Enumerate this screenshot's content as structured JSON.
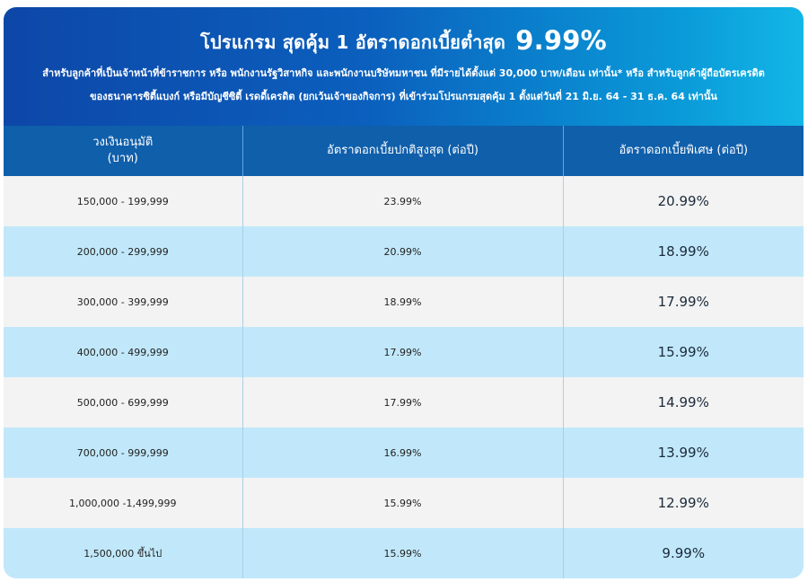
{
  "banner": {
    "title": "โปรแกรม สุดคุ้ม 1 อัตราดอกเบี้ยต่ำสุด",
    "title_rate": "9.99%",
    "line1": "สำหรับลูกค้าที่เป็นเจ้าหน้าที่ข้าราชการ หรือ พนักงานรัฐวิสาหกิจ และพนักงานบริษัทมหาชน ที่มีรายได้ตั้งแต่ 30,000 บาท/เดือน เท่านั้น* หรือ สำหรับลูกค้าผู้ถือบัตรเครดิต",
    "line2": "ของธนาคารซิตี้แบงก์ หรือมีบัญชีซิตี้ เรดดี้เครดิต (ยกเว้นเจ้าของกิจการ) ที่เข้าร่วมโปรแกรมสุดคุ้ม 1 ตั้งแต่วันที่ 21 มิ.ย. 64 - 31 ธ.ค. 64 เท่านั้น"
  },
  "table": {
    "headers": {
      "col1_line1": "วงเงินอนุมัติ",
      "col1_line2": "(บาท)",
      "col2": "อัตราดอกเบี้ยปกติสูงสุด (ต่อปี)",
      "col3": "อัตราดอกเบี้ยพิเศษ (ต่อปี)"
    },
    "rows": [
      {
        "amount": "150,000 - 199,999",
        "normal": "23.99%",
        "special": "20.99%"
      },
      {
        "amount": "200,000 - 299,999",
        "normal": "20.99%",
        "special": "18.99%"
      },
      {
        "amount": "300,000 - 399,999",
        "normal": "18.99%",
        "special": "17.99%"
      },
      {
        "amount": "400,000 - 499,999",
        "normal": "17.99%",
        "special": "15.99%"
      },
      {
        "amount": "500,000 - 699,999",
        "normal": "17.99%",
        "special": "14.99%"
      },
      {
        "amount": "700,000 - 999,999",
        "normal": "16.99%",
        "special": "13.99%"
      },
      {
        "amount": "1,000,000 -1,499,999",
        "normal": "15.99%",
        "special": "12.99%"
      },
      {
        "amount": "1,500,000 ขึ้นไป",
        "normal": "15.99%",
        "special": "9.99%"
      }
    ]
  },
  "colors": {
    "banner_left": "#0d47a8",
    "banner_right": "#13b6e6",
    "header_bg": "#0f5fab",
    "row_gray": "#f3f3f3",
    "row_blue": "#c1e8fa"
  }
}
